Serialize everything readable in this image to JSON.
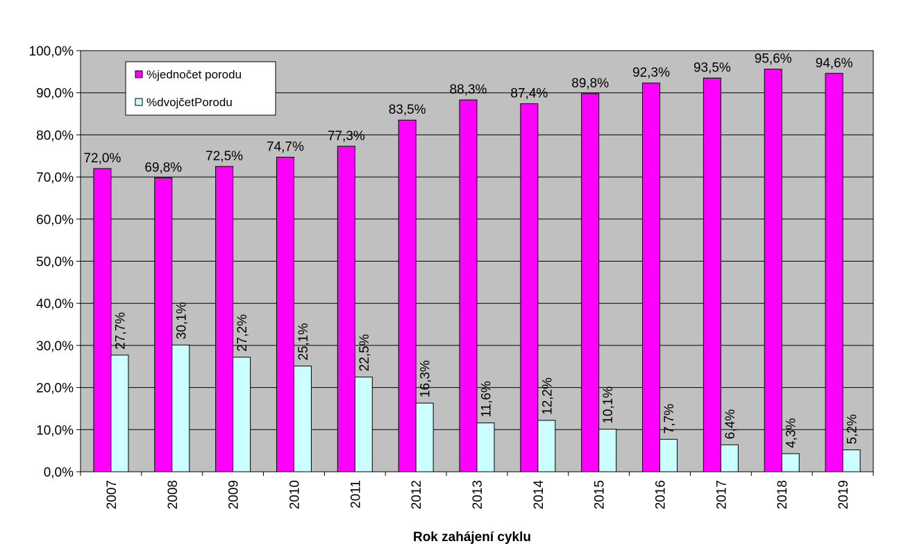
{
  "chart_data": {
    "type": "bar",
    "title": "",
    "xlabel": "Rok zahájení cyklu",
    "ylabel": "",
    "ylim": [
      0,
      100
    ],
    "yticks": [
      "0,0%",
      "10,0%",
      "20,0%",
      "30,0%",
      "40,0%",
      "50,0%",
      "60,0%",
      "70,0%",
      "80,0%",
      "90,0%",
      "100,0%"
    ],
    "categories": [
      "2007",
      "2008",
      "2009",
      "2010",
      "2011",
      "2012",
      "2013",
      "2014",
      "2015",
      "2016",
      "2017",
      "2018",
      "2019"
    ],
    "series": [
      {
        "name": "%jednočet porodu",
        "color": "#ff00ff",
        "values": [
          72.0,
          69.8,
          72.5,
          74.7,
          77.3,
          83.5,
          88.3,
          87.4,
          89.8,
          92.3,
          93.5,
          95.6,
          94.6
        ],
        "labels": [
          "72,0%",
          "69,8%",
          "72,5%",
          "74,7%",
          "77,3%",
          "83,5%",
          "88,3%",
          "87,4%",
          "89,8%",
          "92,3%",
          "93,5%",
          "95,6%",
          "94,6%"
        ]
      },
      {
        "name": "%dvojčetPorodu",
        "color": "#ccffff",
        "values": [
          27.7,
          30.1,
          27.2,
          25.1,
          22.5,
          16.3,
          11.6,
          12.2,
          10.1,
          7.7,
          6.4,
          4.3,
          5.2
        ],
        "labels": [
          "27,7%",
          "30,1%",
          "27,2%",
          "25,1%",
          "22,5%",
          "16,3%",
          "11,6%",
          "12,2%",
          "10,1%",
          "7,7%",
          "6,4%",
          "4,3%",
          "5,2%"
        ]
      }
    ],
    "grid": true,
    "legend_position": "top-left",
    "plot_background": "#c0c0c0"
  }
}
